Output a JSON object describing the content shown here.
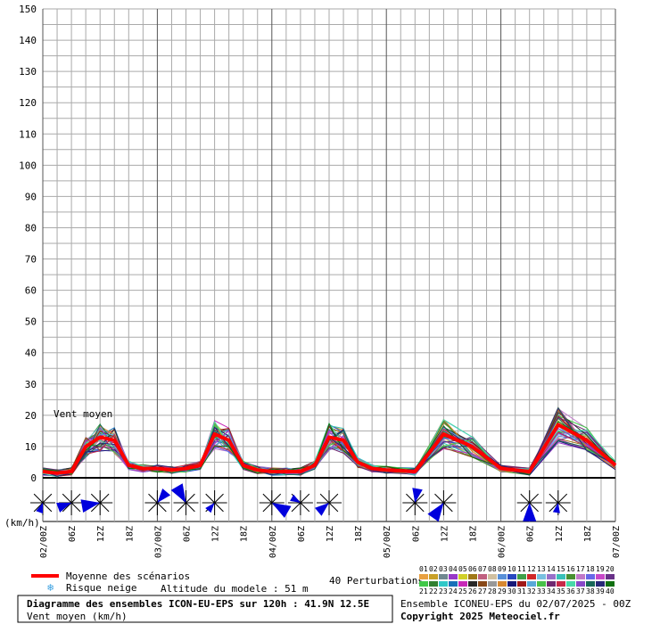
{
  "chart_data": {
    "type": "line",
    "series_label": "Vent moyen",
    "y_unit": "(km/h)",
    "ylim": [
      0,
      150
    ],
    "y_ticks": [
      0,
      10,
      20,
      30,
      40,
      50,
      60,
      70,
      80,
      90,
      100,
      110,
      120,
      130,
      140,
      150
    ],
    "x_range_hours": [
      0,
      120
    ],
    "x_ticks": [
      {
        "h": 0,
        "label": "02/00Z"
      },
      {
        "h": 6,
        "label": "06Z"
      },
      {
        "h": 12,
        "label": "12Z"
      },
      {
        "h": 18,
        "label": "18Z"
      },
      {
        "h": 24,
        "label": "03/00Z"
      },
      {
        "h": 30,
        "label": "06Z"
      },
      {
        "h": 36,
        "label": "12Z"
      },
      {
        "h": 42,
        "label": "18Z"
      },
      {
        "h": 48,
        "label": "04/00Z"
      },
      {
        "h": 54,
        "label": "06Z"
      },
      {
        "h": 60,
        "label": "12Z"
      },
      {
        "h": 66,
        "label": "18Z"
      },
      {
        "h": 72,
        "label": "05/00Z"
      },
      {
        "h": 78,
        "label": "06Z"
      },
      {
        "h": 84,
        "label": "12Z"
      },
      {
        "h": 90,
        "label": "18Z"
      },
      {
        "h": 96,
        "label": "06/00Z"
      },
      {
        "h": 102,
        "label": "06Z"
      },
      {
        "h": 108,
        "label": "12Z"
      },
      {
        "h": 114,
        "label": "18Z"
      },
      {
        "h": 120,
        "label": "07/00Z"
      }
    ],
    "mean_series": {
      "name": "Moyenne des scénarios",
      "color": "#ff0000",
      "x": [
        0,
        3,
        6,
        9,
        12,
        15,
        18,
        21,
        24,
        27,
        30,
        33,
        36,
        39,
        42,
        45,
        48,
        51,
        54,
        57,
        60,
        63,
        66,
        69,
        72,
        78,
        84,
        90,
        96,
        102,
        108,
        114,
        120
      ],
      "y": [
        2,
        1.5,
        2,
        10,
        13,
        12,
        4,
        3,
        3,
        2.5,
        3,
        4,
        14,
        12,
        4,
        2.5,
        2,
        2,
        2,
        4,
        13,
        12,
        5,
        3,
        2.5,
        2,
        14,
        10,
        3,
        2,
        17,
        12,
        4
      ]
    },
    "wind_rose_hours": [
      0,
      6,
      12,
      18,
      24,
      30,
      36,
      42,
      48,
      54,
      60,
      66,
      72,
      78,
      84,
      90,
      96,
      102,
      108,
      114,
      120
    ],
    "wind_rose_shown": [
      1,
      1,
      1,
      0,
      1,
      1,
      1,
      0,
      1,
      1,
      1,
      0,
      0,
      1,
      1,
      0,
      0,
      1,
      1,
      0,
      0
    ]
  },
  "legend": {
    "mean_label": "Moyenne des scénarios",
    "snow_label": "Risque neige",
    "altitude_label": "Altitude du modele : 51 m",
    "perturbations_label": "40 Perturbations",
    "palette_top": [
      "01",
      "02",
      "03",
      "04",
      "05",
      "06",
      "07",
      "08",
      "09",
      "10",
      "11",
      "12",
      "13",
      "14",
      "15",
      "16",
      "17",
      "18",
      "19",
      "20"
    ],
    "palette_bottom": [
      "21",
      "22",
      "23",
      "24",
      "25",
      "26",
      "27",
      "28",
      "29",
      "30",
      "31",
      "32",
      "33",
      "34",
      "35",
      "36",
      "37",
      "38",
      "39",
      "40"
    ],
    "palette_colors_top": [
      "#e8a040",
      "#c8a028",
      "#708890",
      "#9838c8",
      "#d0d028",
      "#a07818",
      "#c06080",
      "#d0c0a0",
      "#5890d8",
      "#2848c0",
      "#40a048",
      "#d02828",
      "#78c0e0",
      "#9870c8",
      "#38c0b8",
      "#489030",
      "#c078c8",
      "#6868e8",
      "#c848c8",
      "#683088"
    ],
    "palette_colors_bottom": [
      "#40c848",
      "#308030",
      "#30c8c8",
      "#1870b8",
      "#c828b8",
      "#282828",
      "#884818",
      "#989898",
      "#d88830",
      "#181878",
      "#a01818",
      "#58a8d8",
      "#48c048",
      "#702870",
      "#c82848",
      "#48d8a8",
      "#8848c8",
      "#186858",
      "#282878",
      "#107010"
    ]
  },
  "footer": {
    "title": "Diagramme des ensembles ICON-EU-EPS sur 120h : 41.9N 12.5E",
    "subtitle": "Vent moyen (km/h)",
    "run_info": "Ensemble ICONEU-EPS du 02/07/2025 - 00Z",
    "copyright": "Copyright 2025 Meteociel.fr"
  },
  "colors": {
    "grid": "#aaaaaa",
    "major_grid": "#555555",
    "rose": "#0000dd"
  }
}
